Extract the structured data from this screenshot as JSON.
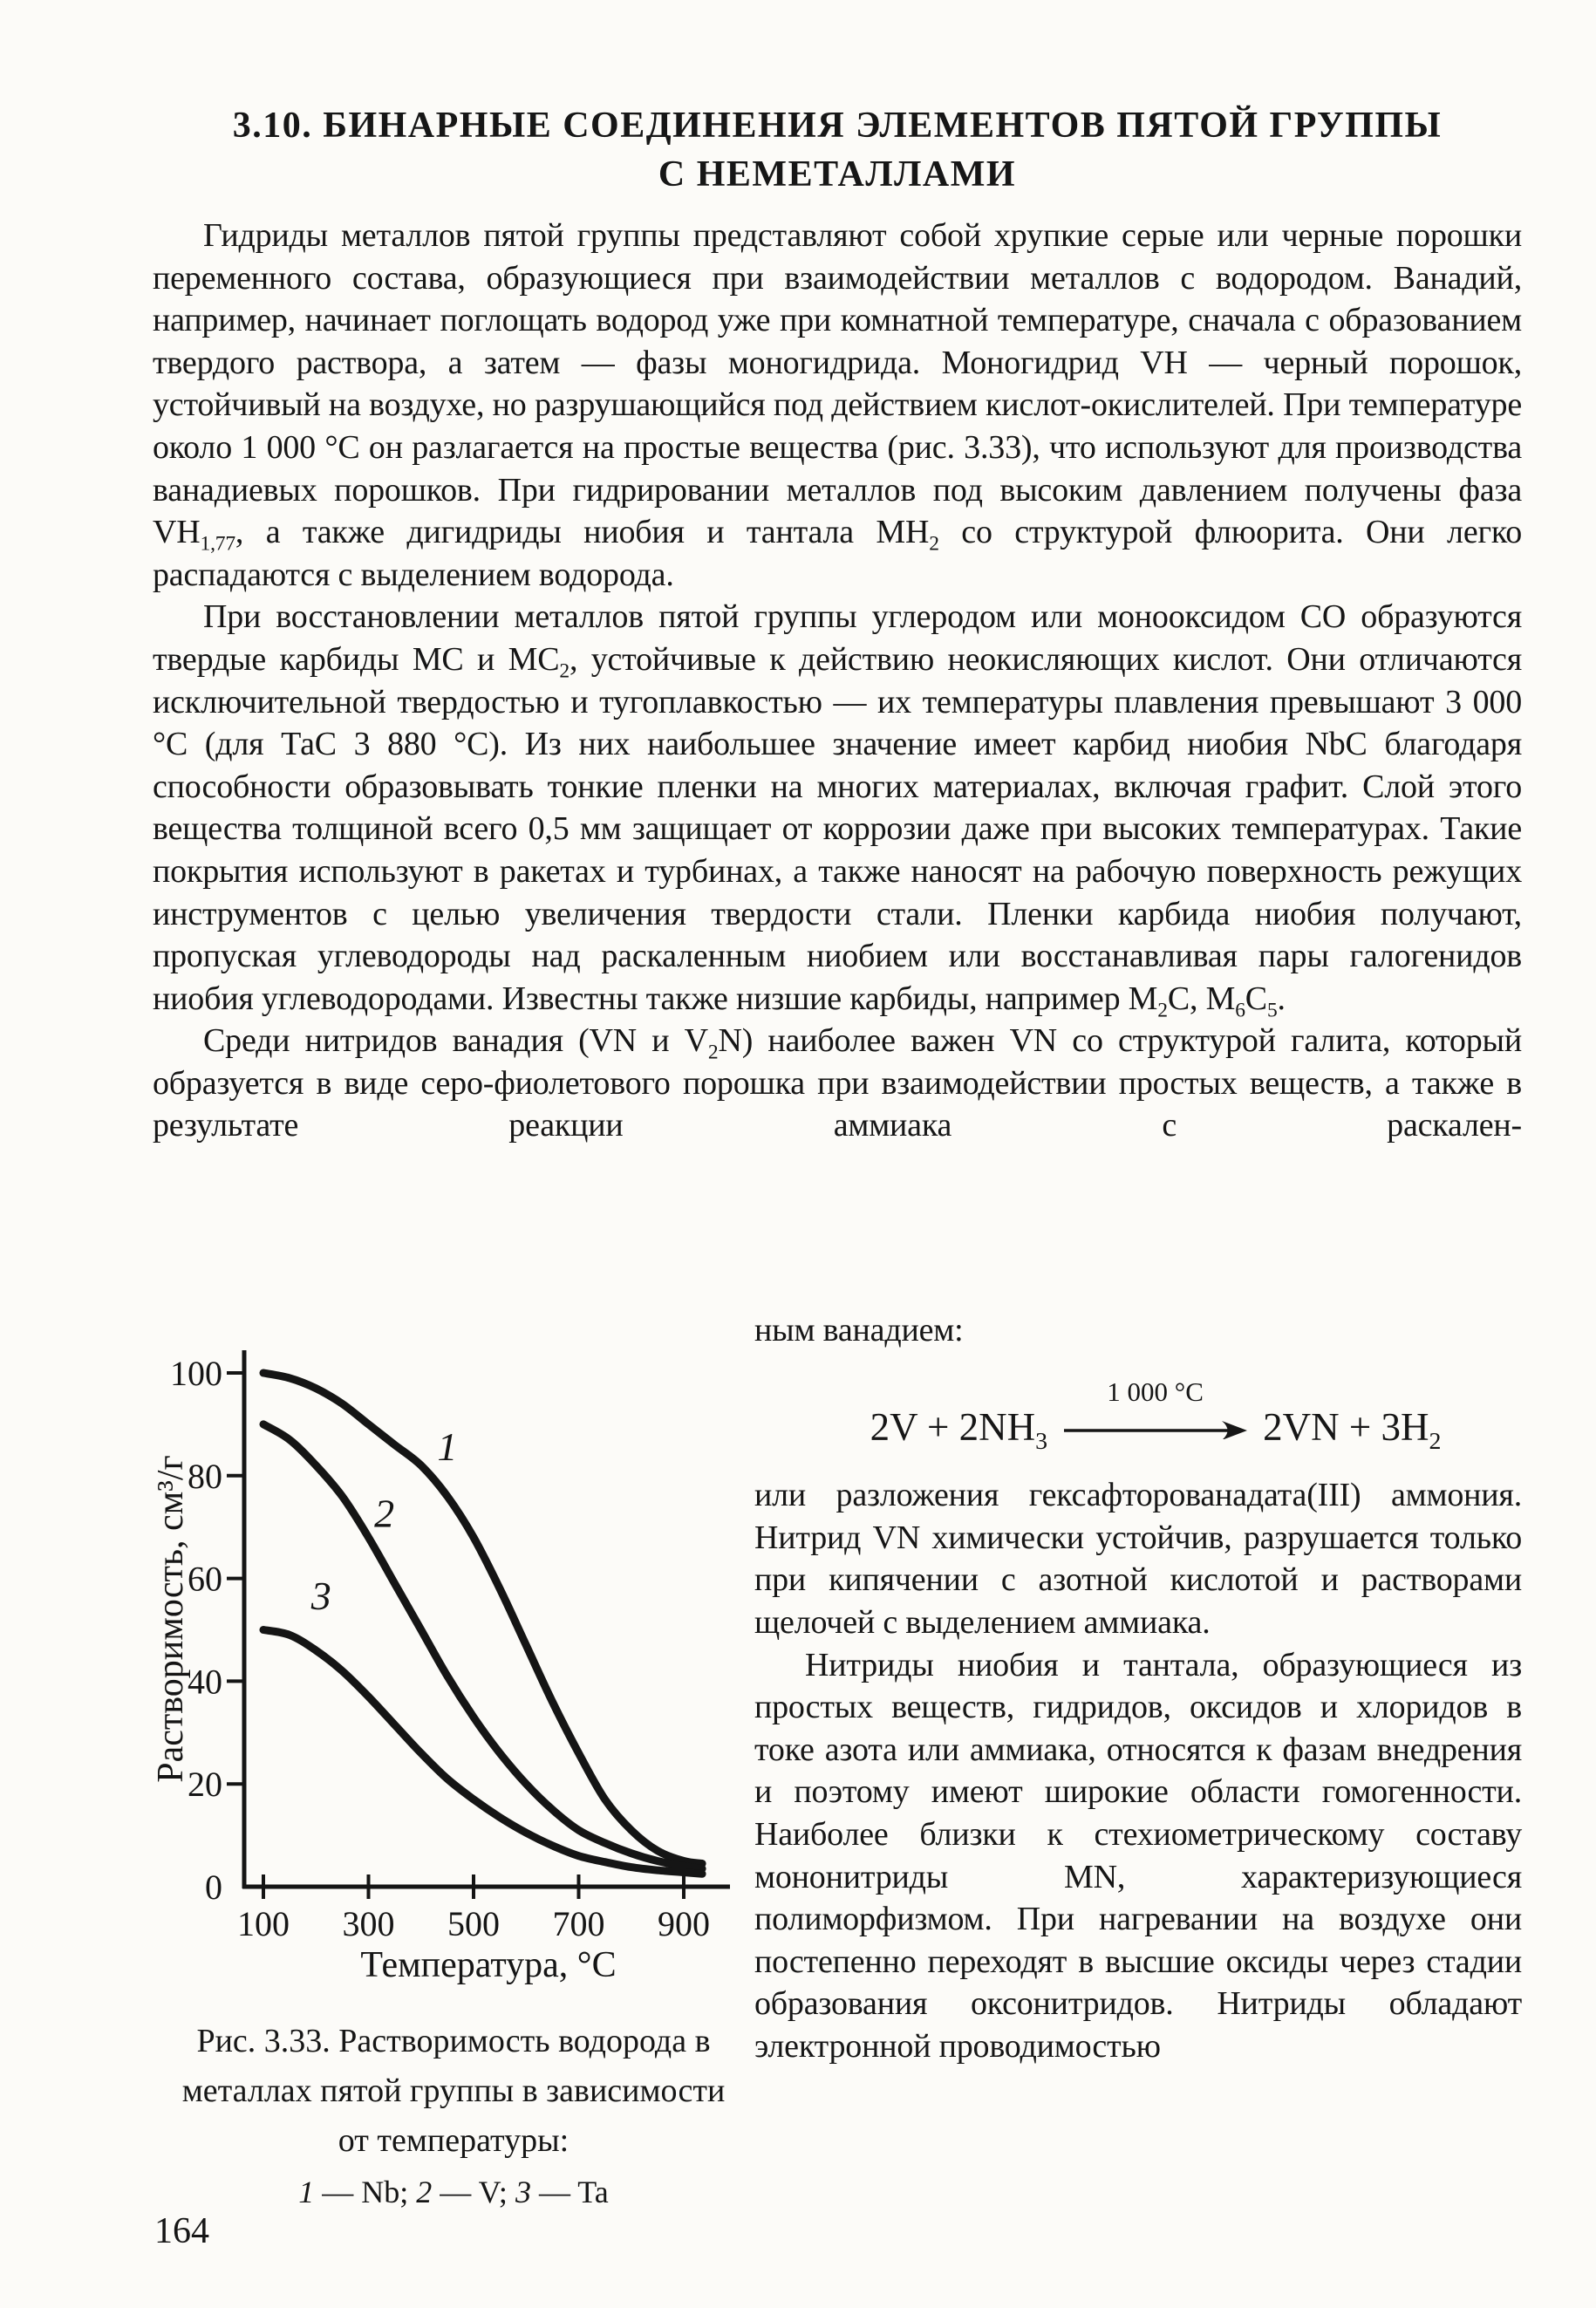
{
  "page": {
    "number": "164"
  },
  "heading": {
    "line1": "3.10. БИНАРНЫЕ СОЕДИНЕНИЯ ЭЛЕМЕНТОВ ПЯТОЙ ГРУППЫ",
    "line2": "С НЕМЕТАЛЛАМИ"
  },
  "paragraphs": {
    "p1": [
      {
        "t": "Гидриды металлов пятой группы представляют собой хрупкие серые или черные порошки переменного состава, образующиеся при взаимодействии металлов с водородом. Ванадий, например, начинает поглощать водород уже при комнатной температуре, сначала с образованием твердого раствора, а затем — фазы моногидрида. Моногидрид VH — черный порошок, устойчивый на воздухе, но разрушающийся под действием кислот-окислителей. При температуре около 1 000 °С он разлагается на простые вещества (рис. 3.33), что используют для производства ванадиевых порошков. При гидрировании металлов под высоким давлением получены фаза VH"
      },
      {
        "t": "1,77",
        "sub": true
      },
      {
        "t": ", а также дигидриды ниобия и тантала МН"
      },
      {
        "t": "2",
        "sub": true
      },
      {
        "t": " со структурой флюорита. Они легко распадаются с выделением водорода."
      }
    ],
    "p2": [
      {
        "t": "При восстановлении металлов пятой группы углеродом или монооксидом СО образуются твердые карбиды МС и МС"
      },
      {
        "t": "2",
        "sub": true
      },
      {
        "t": ", устойчивые к действию неокисляющих кислот. Они отличаются исключительной твердостью и тугоплавкостью — их температуры плавления превышают 3 000 °С (для ТаС 3 880 °С). Из них наибольшее значение имеет карбид ниобия NbC благодаря способности образовывать тонкие пленки на многих материалах, включая графит. Слой этого вещества толщиной всего 0,5 мм защищает от коррозии даже при высоких температурах. Такие покрытия используют в ракетах и турбинах, а также наносят на рабочую поверхность режущих инструментов с целью увеличения твердости стали. Пленки карбида ниобия получают, пропуская углеводороды над раскаленным ниобием или восстанавливая пары галогенидов ниобия углеводородами. Известны также низшие карбиды, например М"
      },
      {
        "t": "2",
        "sub": true
      },
      {
        "t": "С, М"
      },
      {
        "t": "6",
        "sub": true
      },
      {
        "t": "С"
      },
      {
        "t": "5",
        "sub": true
      },
      {
        "t": "."
      }
    ],
    "p3": [
      {
        "t": "Среди нитридов ванадия (VN и V"
      },
      {
        "t": "2",
        "sub": true
      },
      {
        "t": "N) наиболее важен VN со структурой галита, который образуется в виде серо-фиолетового порошка при взаимодействии простых веществ, а также в результате реакции аммиака с раскален-"
      }
    ],
    "p3_continuation": "ным ванадием:",
    "p4": "или разложения гексафторованадата(III) аммония. Нитрид VN химически устойчив, разрушается только при кипячении с азотной кислотой и растворами щелочей с выделением аммиака.",
    "p5": "Нитриды ниобия и тантала, образующиеся из простых веществ, гидридов, оксидов и хлоридов в токе азота или аммиака, относятся к фазам внедрения и поэтому имеют широкие области гомогенности. Наиболее близки к стехиометрическому составу мононитриды MN, характеризующиеся полиморфизмом. При нагревании на воздухе они постепенно переходят в высшие оксиды через стадии образования оксонитридов. Нитриды обладают электронной проводимостью"
  },
  "equation": {
    "condition": "1 000 °С",
    "lhs": [
      {
        "t": "2V + 2NH"
      },
      {
        "t": "3",
        "sub": true
      }
    ],
    "rhs": [
      {
        "t": "2VN + 3H"
      },
      {
        "t": "2",
        "sub": true
      }
    ]
  },
  "figure": {
    "caption": "Рис. 3.33. Растворимость водорода в металлах пятой группы в зависимости от температуры:",
    "legend": [
      {
        "t": "1",
        "i": true
      },
      {
        "t": " — Nb; "
      },
      {
        "t": "2",
        "i": true
      },
      {
        "t": " — V; "
      },
      {
        "t": "3",
        "i": true
      },
      {
        "t": " — Ta"
      }
    ]
  },
  "chart_data": {
    "type": "line",
    "title": "",
    "xlabel": "Температура, °С",
    "ylabel": "Растворимость, см³/г",
    "xlim": [
      100,
      950
    ],
    "ylim": [
      0,
      104
    ],
    "xticks": [
      100,
      300,
      500,
      700,
      900
    ],
    "yticks": [
      0,
      20,
      40,
      60,
      80,
      100
    ],
    "grid": false,
    "legend_position": "curve labels on plot",
    "line_color": "#151515",
    "series": [
      {
        "name": "1",
        "metal": "Nb",
        "label_at": {
          "x": 450,
          "y": 83
        },
        "points": [
          [
            100,
            100
          ],
          [
            150,
            99
          ],
          [
            200,
            97
          ],
          [
            250,
            94
          ],
          [
            300,
            90
          ],
          [
            350,
            86
          ],
          [
            400,
            82
          ],
          [
            450,
            76
          ],
          [
            500,
            68
          ],
          [
            550,
            58
          ],
          [
            600,
            47
          ],
          [
            650,
            36
          ],
          [
            700,
            26
          ],
          [
            750,
            17
          ],
          [
            800,
            11
          ],
          [
            850,
            7
          ],
          [
            900,
            5
          ],
          [
            935,
            4.5
          ]
        ]
      },
      {
        "name": "2",
        "metal": "V",
        "label_at": {
          "x": 330,
          "y": 70
        },
        "points": [
          [
            100,
            90
          ],
          [
            150,
            87
          ],
          [
            200,
            82
          ],
          [
            250,
            76
          ],
          [
            300,
            68
          ],
          [
            350,
            59
          ],
          [
            400,
            50
          ],
          [
            450,
            41
          ],
          [
            500,
            33
          ],
          [
            550,
            26
          ],
          [
            600,
            20
          ],
          [
            650,
            15
          ],
          [
            700,
            11
          ],
          [
            750,
            8.5
          ],
          [
            800,
            6.5
          ],
          [
            850,
            5
          ],
          [
            900,
            4
          ],
          [
            935,
            3.5
          ]
        ]
      },
      {
        "name": "3",
        "metal": "Ta",
        "label_at": {
          "x": 210,
          "y": 54
        },
        "points": [
          [
            100,
            50
          ],
          [
            150,
            49
          ],
          [
            200,
            46
          ],
          [
            250,
            42
          ],
          [
            300,
            37
          ],
          [
            350,
            31.5
          ],
          [
            400,
            26
          ],
          [
            450,
            21
          ],
          [
            500,
            17
          ],
          [
            550,
            13.5
          ],
          [
            600,
            10.5
          ],
          [
            650,
            8
          ],
          [
            700,
            6
          ],
          [
            750,
            4.8
          ],
          [
            800,
            3.8
          ],
          [
            850,
            3.2
          ],
          [
            900,
            2.8
          ],
          [
            935,
            2.5
          ]
        ]
      }
    ]
  }
}
